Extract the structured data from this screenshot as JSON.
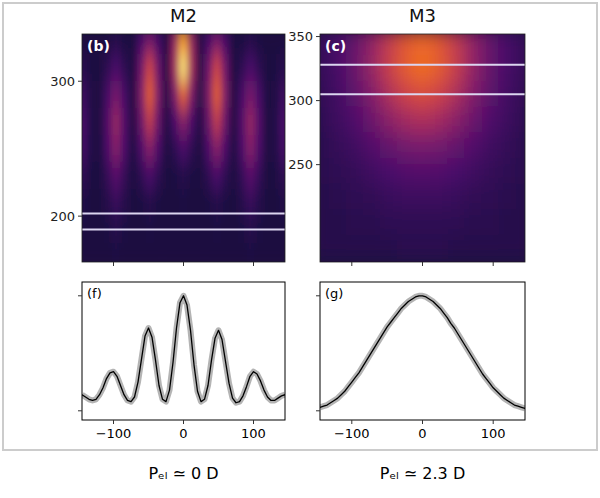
{
  "chart_data": [
    {
      "type": "heatmap",
      "title": "M2",
      "annotations": [
        "(b)"
      ],
      "xlim": [
        -145,
        145
      ],
      "xticks": [
        -100,
        0,
        100
      ],
      "ylim": [
        166,
        335
      ],
      "yticks": [
        200,
        300
      ],
      "tick_labels": "y",
      "band": [
        190,
        202
      ],
      "cells": {
        "x": [
          -144,
          -132,
          -120,
          -108,
          -96,
          -84,
          -72,
          -60,
          -48,
          -36,
          -24,
          -12,
          0,
          12,
          24,
          36,
          48,
          60,
          72,
          84,
          96,
          108,
          120,
          132,
          144
        ],
        "y": [
          330,
          310,
          290,
          270,
          250,
          230,
          210,
          190,
          170
        ],
        "values": [
          [
            0.02,
            0.01,
            0.01,
            0.02,
            0.05,
            0.02,
            0.01,
            0.14,
            0.3,
            0.14,
            0.02,
            0.4,
            0.9,
            0.4,
            0.02,
            0.14,
            0.3,
            0.14,
            0.01,
            0.02,
            0.05,
            0.02,
            0.01,
            0.01,
            0.02
          ],
          [
            0.06,
            0.02,
            0.01,
            0.07,
            0.15,
            0.07,
            0.01,
            0.27,
            0.6,
            0.27,
            0.02,
            0.45,
            1.0,
            0.45,
            0.02,
            0.27,
            0.6,
            0.27,
            0.01,
            0.07,
            0.15,
            0.07,
            0.01,
            0.02,
            0.06
          ],
          [
            0.12,
            0.03,
            0.01,
            0.14,
            0.3,
            0.14,
            0.01,
            0.32,
            0.7,
            0.32,
            0.02,
            0.32,
            0.7,
            0.32,
            0.02,
            0.32,
            0.7,
            0.32,
            0.01,
            0.14,
            0.3,
            0.14,
            0.01,
            0.03,
            0.12
          ],
          [
            0.16,
            0.04,
            0.01,
            0.18,
            0.4,
            0.18,
            0.01,
            0.25,
            0.55,
            0.25,
            0.02,
            0.16,
            0.35,
            0.16,
            0.02,
            0.25,
            0.55,
            0.25,
            0.01,
            0.18,
            0.4,
            0.18,
            0.01,
            0.04,
            0.16
          ],
          [
            0.14,
            0.04,
            0.01,
            0.16,
            0.35,
            0.16,
            0.01,
            0.16,
            0.35,
            0.16,
            0.01,
            0.07,
            0.15,
            0.07,
            0.01,
            0.16,
            0.35,
            0.16,
            0.01,
            0.16,
            0.35,
            0.16,
            0.01,
            0.04,
            0.14
          ],
          [
            0.08,
            0.02,
            0.01,
            0.09,
            0.2,
            0.09,
            0.01,
            0.07,
            0.15,
            0.07,
            0.01,
            0.02,
            0.05,
            0.02,
            0.01,
            0.07,
            0.15,
            0.07,
            0.01,
            0.09,
            0.2,
            0.09,
            0.01,
            0.02,
            0.08
          ],
          [
            0.04,
            0.01,
            0.01,
            0.05,
            0.1,
            0.05,
            0.01,
            0.02,
            0.05,
            0.02,
            0.01,
            0.01,
            0.02,
            0.01,
            0.01,
            0.02,
            0.05,
            0.02,
            0.01,
            0.05,
            0.1,
            0.05,
            0.01,
            0.01,
            0.04
          ],
          [
            0.02,
            0.01,
            0.01,
            0.02,
            0.05,
            0.02,
            0.01,
            0.01,
            0.02,
            0.01,
            0.01,
            0.01,
            0.01,
            0.01,
            0.01,
            0.01,
            0.02,
            0.01,
            0.01,
            0.02,
            0.05,
            0.02,
            0.01,
            0.01,
            0.02
          ],
          [
            0.01,
            0.01,
            0.01,
            0.01,
            0.02,
            0.01,
            0.01,
            0.01,
            0.01,
            0.01,
            0.01,
            0.01,
            0.01,
            0.01,
            0.01,
            0.01,
            0.01,
            0.01,
            0.01,
            0.01,
            0.02,
            0.01,
            0.01,
            0.01,
            0.01
          ]
        ]
      }
    },
    {
      "type": "heatmap",
      "title": "M3",
      "annotations": [
        "(c)"
      ],
      "xlim": [
        -145,
        145
      ],
      "xticks": [
        -100,
        0,
        100
      ],
      "ylim": [
        174,
        352
      ],
      "yticks": [
        250,
        300,
        350
      ],
      "tick_labels": "y",
      "band": [
        305,
        328
      ],
      "cells": {
        "x": [
          -144,
          -120,
          -96,
          -72,
          -48,
          -24,
          0,
          24,
          48,
          72,
          96,
          120,
          144
        ],
        "y": [
          345,
          325,
          305,
          285,
          265,
          245,
          225,
          205,
          185
        ],
        "values": [
          [
            0.09,
            0.14,
            0.24,
            0.38,
            0.55,
            0.68,
            0.74,
            0.68,
            0.55,
            0.38,
            0.24,
            0.14,
            0.09
          ],
          [
            0.09,
            0.14,
            0.25,
            0.39,
            0.56,
            0.69,
            0.75,
            0.69,
            0.56,
            0.38,
            0.24,
            0.14,
            0.09
          ],
          [
            0.08,
            0.13,
            0.21,
            0.33,
            0.47,
            0.59,
            0.64,
            0.59,
            0.47,
            0.33,
            0.21,
            0.13,
            0.08
          ],
          [
            0.07,
            0.11,
            0.17,
            0.26,
            0.36,
            0.44,
            0.48,
            0.44,
            0.36,
            0.26,
            0.17,
            0.11,
            0.07
          ],
          [
            0.06,
            0.09,
            0.12,
            0.18,
            0.24,
            0.29,
            0.31,
            0.29,
            0.24,
            0.18,
            0.12,
            0.09,
            0.06
          ],
          [
            0.06,
            0.07,
            0.09,
            0.12,
            0.15,
            0.18,
            0.19,
            0.18,
            0.15,
            0.12,
            0.09,
            0.07,
            0.06
          ],
          [
            0.05,
            0.06,
            0.07,
            0.08,
            0.1,
            0.11,
            0.11,
            0.11,
            0.1,
            0.08,
            0.07,
            0.06,
            0.05
          ],
          [
            0.05,
            0.05,
            0.06,
            0.06,
            0.07,
            0.07,
            0.07,
            0.07,
            0.07,
            0.06,
            0.06,
            0.05,
            0.05
          ],
          [
            0.05,
            0.05,
            0.05,
            0.05,
            0.05,
            0.06,
            0.06,
            0.06,
            0.05,
            0.05,
            0.05,
            0.05,
            0.05
          ]
        ]
      }
    },
    {
      "type": "line",
      "annotations": [
        "(f)"
      ],
      "xlabel": "Pₑₗ ≃ 0 D",
      "xlim": [
        -145,
        145
      ],
      "xticks": [
        {
          "value": -100,
          "label": "−100"
        },
        0,
        100
      ],
      "ylim": [
        -0.08,
        1.12
      ],
      "yticks": [
        0,
        1
      ],
      "tick_labels": "x",
      "color": "#000000",
      "x": [
        -145,
        -140,
        -135,
        -130,
        -125,
        -120,
        -115,
        -110,
        -105,
        -100,
        -95,
        -90,
        -85,
        -80,
        -75,
        -70,
        -65,
        -60,
        -55,
        -50,
        -45,
        -40,
        -35,
        -30,
        -25,
        -20,
        -15,
        -10,
        -5,
        0,
        5,
        10,
        15,
        20,
        25,
        30,
        35,
        40,
        45,
        50,
        55,
        60,
        65,
        70,
        75,
        80,
        85,
        90,
        95,
        100,
        105,
        110,
        115,
        120,
        125,
        130,
        135,
        140,
        145
      ],
      "values": [
        0.14,
        0.12,
        0.1,
        0.09,
        0.1,
        0.14,
        0.2,
        0.28,
        0.33,
        0.34,
        0.3,
        0.22,
        0.14,
        0.09,
        0.08,
        0.12,
        0.25,
        0.45,
        0.65,
        0.72,
        0.64,
        0.44,
        0.22,
        0.1,
        0.08,
        0.18,
        0.42,
        0.72,
        0.94,
        1.0,
        0.92,
        0.7,
        0.4,
        0.17,
        0.08,
        0.1,
        0.22,
        0.44,
        0.63,
        0.7,
        0.62,
        0.43,
        0.24,
        0.11,
        0.07,
        0.08,
        0.13,
        0.21,
        0.3,
        0.34,
        0.32,
        0.26,
        0.18,
        0.12,
        0.09,
        0.09,
        0.11,
        0.13,
        0.14
      ]
    },
    {
      "type": "line",
      "annotations": [
        "(g)"
      ],
      "xlabel": "Pₑₗ ≃ 2.3 D",
      "xlim": [
        -145,
        145
      ],
      "xticks": [
        {
          "value": -100,
          "label": "−100"
        },
        0,
        100
      ],
      "ylim": [
        -0.08,
        1.12
      ],
      "yticks": [
        0,
        1
      ],
      "tick_labels": "x",
      "color": "#000000",
      "x": [
        -145,
        -140,
        -135,
        -130,
        -125,
        -120,
        -115,
        -110,
        -105,
        -100,
        -95,
        -90,
        -85,
        -80,
        -75,
        -70,
        -65,
        -60,
        -55,
        -50,
        -45,
        -40,
        -35,
        -30,
        -25,
        -20,
        -15,
        -10,
        -5,
        0,
        5,
        10,
        15,
        20,
        25,
        30,
        35,
        40,
        45,
        50,
        55,
        60,
        65,
        70,
        75,
        80,
        85,
        90,
        95,
        100,
        105,
        110,
        115,
        120,
        125,
        130,
        135,
        140,
        145
      ],
      "values": [
        0.03,
        0.04,
        0.05,
        0.07,
        0.09,
        0.11,
        0.14,
        0.17,
        0.21,
        0.25,
        0.29,
        0.33,
        0.38,
        0.43,
        0.48,
        0.53,
        0.58,
        0.63,
        0.68,
        0.73,
        0.77,
        0.81,
        0.85,
        0.89,
        0.92,
        0.95,
        0.97,
        0.99,
        1.0,
        1.0,
        0.99,
        0.97,
        0.95,
        0.92,
        0.89,
        0.85,
        0.81,
        0.76,
        0.72,
        0.67,
        0.62,
        0.57,
        0.52,
        0.47,
        0.42,
        0.37,
        0.32,
        0.28,
        0.24,
        0.2,
        0.17,
        0.14,
        0.11,
        0.09,
        0.07,
        0.05,
        0.04,
        0.03,
        0.02
      ]
    }
  ]
}
